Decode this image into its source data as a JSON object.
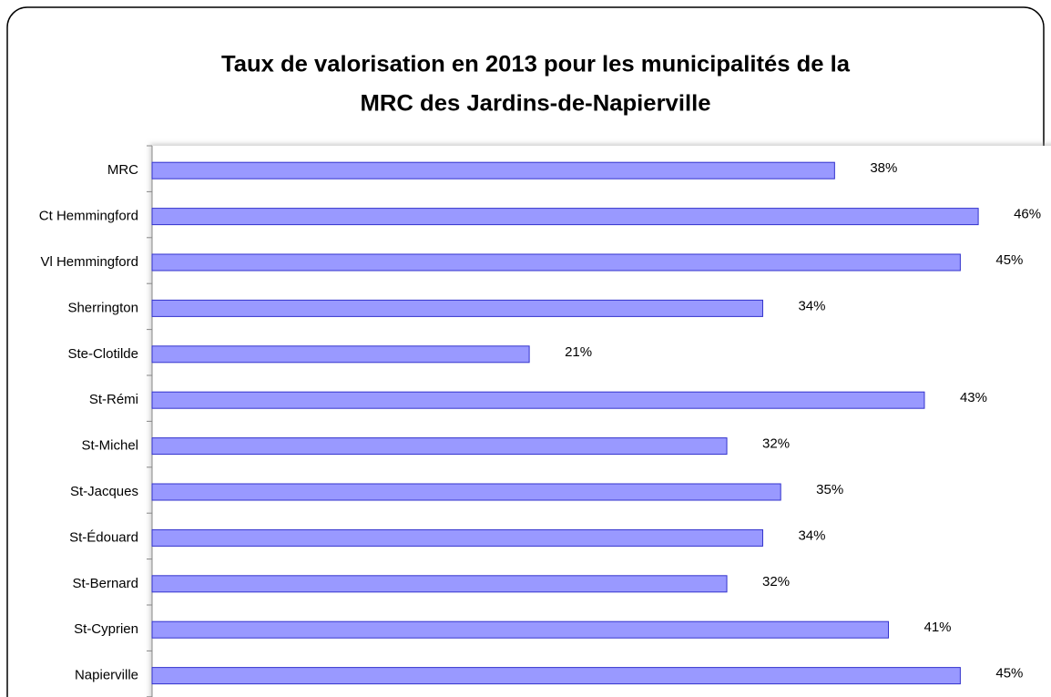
{
  "chart_data": {
    "type": "bar",
    "orientation": "horizontal",
    "title": [
      "Taux de valorisation en 2013 pour les municipalités de la",
      "MRC des Jardins-de-Napierville"
    ],
    "categories": [
      "MRC",
      "Ct Hemmingford",
      "Vl Hemmingford",
      "Sherrington",
      "Ste-Clotilde",
      "St-Rémi",
      "St-Michel",
      "St-Jacques",
      "St-Édouard",
      "St-Bernard",
      "St-Cyprien",
      "Napierville"
    ],
    "values": [
      38,
      46,
      45,
      34,
      21,
      43,
      32,
      35,
      34,
      32,
      41,
      45
    ],
    "value_labels": [
      "38%",
      "46%",
      "45%",
      "34%",
      "21%",
      "43%",
      "32%",
      "35%",
      "34%",
      "32%",
      "41%",
      "45%"
    ],
    "color": "#9999ff",
    "edge_color": "#3333cc"
  }
}
